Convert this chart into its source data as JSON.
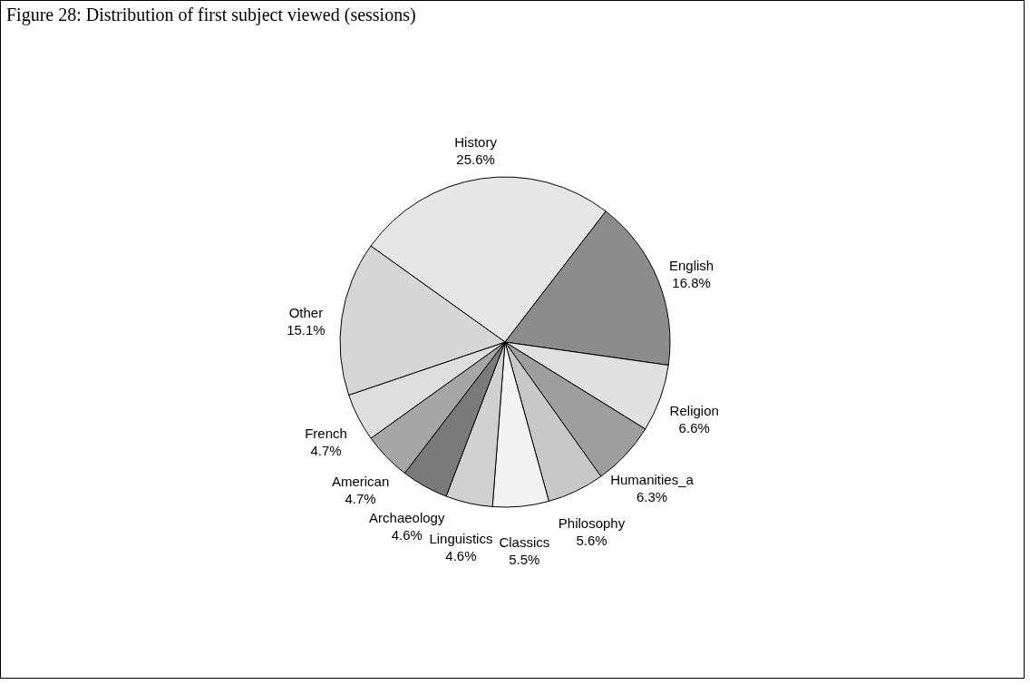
{
  "chart_data": {
    "type": "pie",
    "title": "Figure 28: Distribution of first subject viewed (sessions)",
    "categories": [
      "History",
      "English",
      "Religion",
      "Humanities_a",
      "Philosophy",
      "Classics",
      "Linguistics",
      "Archaeology",
      "American",
      "French",
      "Other"
    ],
    "values": [
      25.6,
      16.8,
      6.6,
      6.3,
      5.6,
      5.5,
      4.6,
      4.6,
      4.7,
      4.7,
      15.1
    ],
    "value_labels": [
      "25.6%",
      "16.8%",
      "6.6%",
      "6.3%",
      "5.6%",
      "5.5%",
      "4.6%",
      "4.6%",
      "4.7%",
      "4.7%",
      "15.1%"
    ],
    "colors": [
      "#e6e6e6",
      "#8c8c8c",
      "#e0e0e0",
      "#9e9e9e",
      "#c8c8c8",
      "#f2f2f2",
      "#d0d0d0",
      "#7a7a7a",
      "#a6a6a6",
      "#dedede",
      "#d6d6d6"
    ],
    "legend": false
  }
}
